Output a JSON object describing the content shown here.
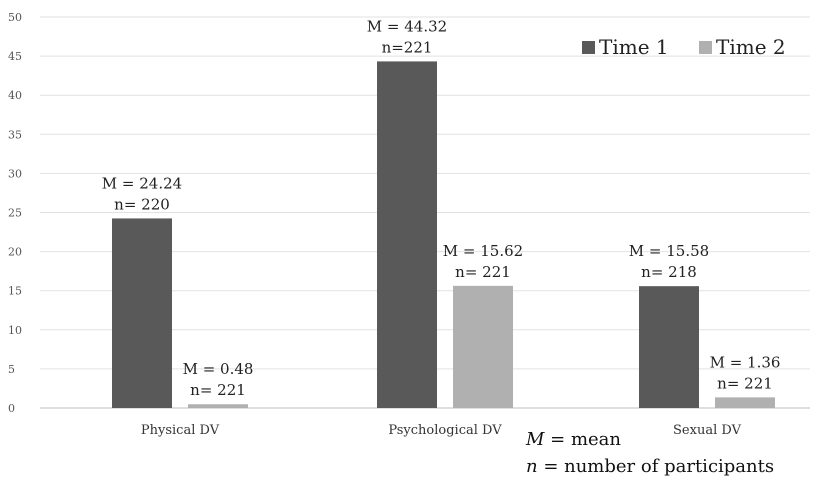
{
  "chart_data": {
    "type": "bar",
    "categories": [
      "Physical DV",
      "Psychological DV",
      "Sexual DV"
    ],
    "series": [
      {
        "name": "Time 1",
        "color": "#595959",
        "values": [
          24.24,
          44.32,
          15.58
        ],
        "labels": [
          [
            "M = 24.24",
            "n= 220"
          ],
          [
            "M = 44.32",
            "n=221"
          ],
          [
            "M = 15.58",
            "n= 218"
          ]
        ]
      },
      {
        "name": "Time 2",
        "color": "#b0b0b0",
        "values": [
          0.48,
          15.62,
          1.36
        ],
        "labels": [
          [
            "M = 0.48",
            "n= 221"
          ],
          [
            "M = 15.62",
            "n= 221"
          ],
          [
            "M = 1.36",
            "n= 221"
          ]
        ]
      }
    ],
    "ylim": [
      0,
      50
    ],
    "yticks": [
      0,
      5,
      10,
      15,
      20,
      25,
      30,
      35,
      40,
      45,
      50
    ],
    "grid": true,
    "legend_position": "top-right"
  },
  "notes": [
    {
      "symbol": "M",
      "text": " = mean"
    },
    {
      "symbol": "n",
      "text": " = number of participants"
    }
  ]
}
